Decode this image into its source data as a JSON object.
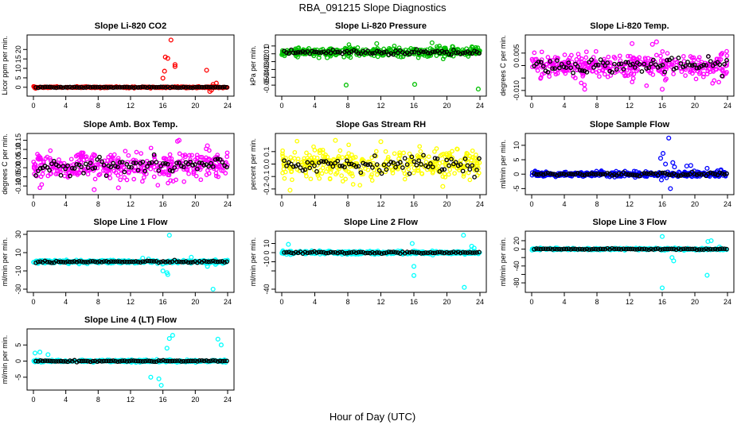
{
  "page": {
    "title": "RBA_091215  Slope Diagnostics",
    "x_axis_title": "Hour of Day (UTC)"
  },
  "chart_data": [
    {
      "type": "scatter",
      "title": "Slope Li-820 CO2",
      "ylabel": "Licor ppm per min.",
      "xlim": [
        0,
        24
      ],
      "ylim": [
        -3,
        26
      ],
      "yticks": [
        0,
        5,
        10,
        15,
        20
      ],
      "yticklabels": [
        "0",
        "5",
        "10",
        "15",
        "20"
      ],
      "xticks": [
        0,
        4,
        8,
        12,
        16,
        20,
        24
      ],
      "color": "#ff0000",
      "spread": 0.3,
      "center": 0,
      "series": [
        {
          "values": []
        }
      ],
      "outliers": [
        [
          16.0,
          4.8
        ],
        [
          16.2,
          8.5
        ],
        [
          16.3,
          16
        ],
        [
          16.6,
          15.3
        ],
        [
          17.0,
          25
        ],
        [
          17.5,
          12
        ],
        [
          17.5,
          11
        ],
        [
          21.4,
          9
        ],
        [
          21.8,
          -2.2
        ],
        [
          22.2,
          1.5
        ],
        [
          22.6,
          2.2
        ],
        [
          22.0,
          -1.5
        ]
      ]
    },
    {
      "type": "scatter",
      "title": "Slope Li-820 Pressure",
      "ylabel": "kPa per min.",
      "xlim": [
        0,
        24
      ],
      "ylim": [
        -0.06,
        0.01
      ],
      "yticks": [
        0,
        -0.01,
        -0.02,
        -0.03,
        -0.04,
        -0.05
      ],
      "yticklabels": [
        "0",
        "-0.01",
        "-0.02",
        "-0.03",
        "-0.04",
        "-0.05"
      ],
      "xticks": [
        0,
        4,
        8,
        12,
        16,
        20,
        24
      ],
      "color": "#00c000",
      "spread": 0.005,
      "center": -0.008,
      "outliers": [
        [
          0.1,
          -0.006
        ],
        [
          1.6,
          -0.01
        ],
        [
          4.5,
          -0.015
        ],
        [
          5.5,
          -0.015
        ],
        [
          7.8,
          -0.05
        ],
        [
          16.1,
          -0.049
        ],
        [
          23.8,
          -0.055
        ],
        [
          11.5,
          0.003
        ],
        [
          18.2,
          0.004
        ],
        [
          23.1,
          -0.002
        ]
      ]
    },
    {
      "type": "scatter",
      "title": "Slope Li-820 Temp.",
      "ylabel": "degrees C per min.",
      "xlim": [
        0,
        24
      ],
      "ylim": [
        -0.011,
        0.011
      ],
      "yticks": [
        -0.01,
        -0.005,
        0,
        0.005
      ],
      "yticklabels": [
        "-0.010",
        "",
        "0",
        "0.005"
      ],
      "xticks": [
        0,
        4,
        8,
        12,
        16,
        20,
        24
      ],
      "color": "#ff00ff",
      "spread": 0.004,
      "center": 0.0,
      "outliers": [
        [
          15.3,
          0.0095
        ],
        [
          14.8,
          0.0085
        ],
        [
          12.3,
          0.0088
        ],
        [
          16.0,
          -0.0095
        ],
        [
          6.5,
          -0.0095
        ]
      ]
    },
    {
      "type": "scatter",
      "title": "Slope Amb. Box Temp.",
      "ylabel": "degrees C per min.",
      "xlim": [
        0,
        24
      ],
      "ylim": [
        -0.13,
        0.17
      ],
      "yticks": [
        -0.1,
        -0.05,
        0,
        0.05,
        0.1,
        0.15
      ],
      "yticklabels": [
        "-0.10",
        "-0.05",
        "0.00",
        "0.05",
        "0.10",
        "0.15"
      ],
      "xticks": [
        0,
        4,
        8,
        12,
        16,
        20,
        24
      ],
      "color": "#ff00ff",
      "spread": 0.06,
      "center": 0.01,
      "outliers": [
        [
          18.0,
          0.15
        ],
        [
          17.8,
          0.145
        ],
        [
          21.5,
          0.12
        ],
        [
          7.5,
          -0.12
        ],
        [
          10.5,
          -0.11
        ]
      ]
    },
    {
      "type": "scatter",
      "title": "Slope Gas Stream RH",
      "ylabel": "percent per min.",
      "xlim": [
        0,
        24
      ],
      "ylim": [
        -0.22,
        0.22
      ],
      "yticks": [
        -0.2,
        -0.1,
        0,
        0.1
      ],
      "yticklabels": [
        "-0.2",
        "-0.1",
        "0.0",
        "0.1"
      ],
      "xticks": [
        0,
        4,
        8,
        12,
        16,
        20,
        24
      ],
      "color": "#ffff00",
      "spread": 0.09,
      "center": 0.0,
      "outliers": [
        [
          1.0,
          -0.21
        ],
        [
          6.5,
          0.19
        ],
        [
          12.0,
          0.18
        ],
        [
          19.5,
          -0.18
        ]
      ]
    },
    {
      "type": "scatter",
      "title": "Slope Sample Flow",
      "ylabel": "ml/min per min.",
      "xlim": [
        0,
        24
      ],
      "ylim": [
        -6,
        13
      ],
      "yticks": [
        -5,
        0,
        5,
        10
      ],
      "yticklabels": [
        "-5",
        "0",
        "5",
        "10"
      ],
      "xticks": [
        0,
        4,
        8,
        12,
        16,
        20,
        24
      ],
      "color": "#0000ff",
      "spread": 0.8,
      "center": 0,
      "outliers": [
        [
          15.8,
          5.5
        ],
        [
          16.1,
          7.2
        ],
        [
          16.8,
          12.5
        ],
        [
          16.4,
          3.5
        ],
        [
          17.3,
          4
        ],
        [
          15.9,
          -2
        ],
        [
          17.0,
          -5
        ],
        [
          17.5,
          2.5
        ],
        [
          19.0,
          2.8
        ],
        [
          19.5,
          3
        ],
        [
          21.5,
          2.0
        ],
        [
          23.2,
          1.5
        ]
      ]
    },
    {
      "type": "scatter",
      "title": "Slope Line 1 Flow",
      "ylabel": "ml/min per min.",
      "xlim": [
        0,
        24
      ],
      "ylim": [
        -30,
        30
      ],
      "yticks": [
        -30,
        -10,
        10,
        30
      ],
      "yticklabels": [
        "-30",
        "-10",
        "10",
        "30"
      ],
      "xticks": [
        0,
        4,
        8,
        12,
        16,
        20,
        24
      ],
      "color": "#00ffff",
      "spread": 1.5,
      "center": 0,
      "outliers": [
        [
          16.8,
          29
        ],
        [
          16.0,
          -10
        ],
        [
          16.5,
          -12
        ],
        [
          16.6,
          -14
        ],
        [
          22.2,
          -30
        ],
        [
          13.5,
          4
        ],
        [
          19.5,
          5
        ],
        [
          21.5,
          -5
        ],
        [
          22.5,
          -3
        ]
      ]
    },
    {
      "type": "scatter",
      "title": "Slope Line 2 Flow",
      "ylabel": "ml/min per min.",
      "xlim": [
        0,
        24
      ],
      "ylim": [
        -40,
        20
      ],
      "yticks": [
        -40,
        -20,
        -10,
        0,
        10
      ],
      "yticklabels": [
        "-40",
        "",
        "-10",
        "0",
        "10"
      ],
      "xticks": [
        0,
        4,
        8,
        12,
        16,
        20,
        24
      ],
      "color": "#00ffff",
      "spread": 1.5,
      "center": 0,
      "outliers": [
        [
          0.8,
          9
        ],
        [
          16.0,
          -15
        ],
        [
          16.0,
          -25
        ],
        [
          15.8,
          10
        ],
        [
          22.0,
          19
        ],
        [
          22.1,
          -38
        ],
        [
          23.3,
          5
        ],
        [
          23.0,
          7
        ]
      ]
    },
    {
      "type": "scatter",
      "title": "Slope Line 3 Flow",
      "ylabel": "ml/min per min.",
      "xlim": [
        0,
        24
      ],
      "ylim": [
        -95,
        35
      ],
      "yticks": [
        -80,
        -60,
        -40,
        -20,
        0,
        20
      ],
      "yticklabels": [
        "-80",
        "",
        "-40",
        "",
        "0",
        "20"
      ],
      "xticks": [
        0,
        4,
        8,
        12,
        16,
        20,
        24
      ],
      "color": "#00ffff",
      "spread": 2,
      "center": 0,
      "outliers": [
        [
          16.0,
          30
        ],
        [
          16.0,
          -92
        ],
        [
          17.2,
          -20
        ],
        [
          17.4,
          -28
        ],
        [
          21.5,
          -62
        ],
        [
          21.6,
          18
        ],
        [
          22.0,
          20
        ],
        [
          23.0,
          5
        ]
      ]
    },
    {
      "type": "scatter",
      "title": "Slope Line 4 (LT) Flow",
      "ylabel": "ml/min per min.",
      "xlim": [
        0,
        24
      ],
      "ylim": [
        -8,
        9
      ],
      "yticks": [
        -5,
        0,
        5
      ],
      "yticklabels": [
        "-5",
        "0",
        "5"
      ],
      "xticks": [
        0,
        4,
        8,
        12,
        16,
        20,
        24
      ],
      "color": "#00ffff",
      "spread": 0.3,
      "center": 0,
      "outliers": [
        [
          15.8,
          -7.5
        ],
        [
          14.5,
          -5
        ],
        [
          15.5,
          -5.5
        ],
        [
          17.2,
          8
        ],
        [
          16.8,
          7
        ],
        [
          22.8,
          6.8
        ],
        [
          23.2,
          5
        ],
        [
          16.5,
          4
        ],
        [
          0.2,
          2.5
        ],
        [
          0.8,
          2.8
        ],
        [
          1.8,
          2.0
        ]
      ]
    }
  ]
}
